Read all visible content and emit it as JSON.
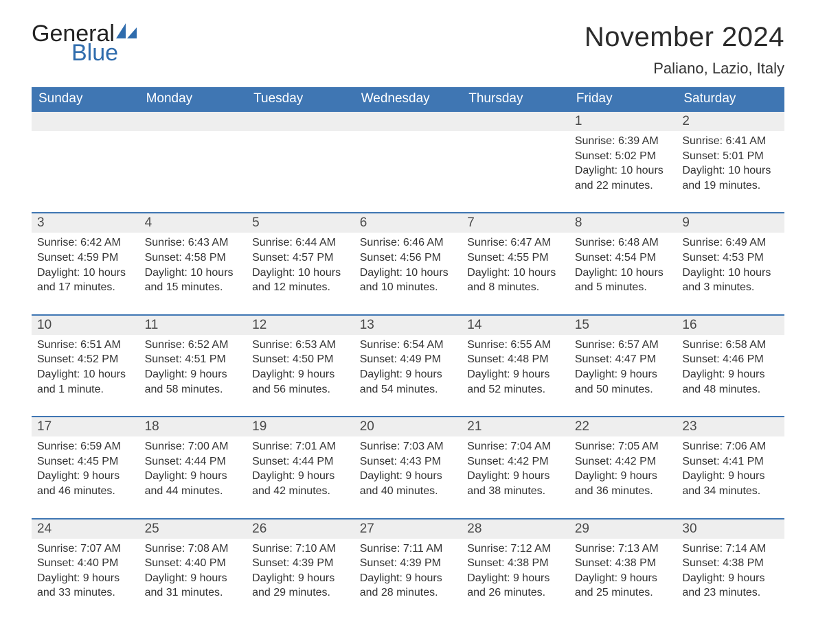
{
  "brand": {
    "text1": "General",
    "text2": "Blue",
    "color_text1": "#222222",
    "color_text2": "#2f6cad",
    "sail_color": "#2f6cad"
  },
  "title": "November 2024",
  "location": "Paliano, Lazio, Italy",
  "colors": {
    "header_bg": "#3f76b3",
    "header_fg": "#ffffff",
    "daynum_bg": "#eeeeee",
    "daynum_border": "#3f76b3",
    "body_text": "#333333",
    "background": "#ffffff"
  },
  "day_headers": [
    "Sunday",
    "Monday",
    "Tuesday",
    "Wednesday",
    "Thursday",
    "Friday",
    "Saturday"
  ],
  "weeks": [
    [
      null,
      null,
      null,
      null,
      null,
      {
        "n": "1",
        "sunrise": "6:39 AM",
        "sunset": "5:02 PM",
        "daylight": "10 hours and 22 minutes."
      },
      {
        "n": "2",
        "sunrise": "6:41 AM",
        "sunset": "5:01 PM",
        "daylight": "10 hours and 19 minutes."
      }
    ],
    [
      {
        "n": "3",
        "sunrise": "6:42 AM",
        "sunset": "4:59 PM",
        "daylight": "10 hours and 17 minutes."
      },
      {
        "n": "4",
        "sunrise": "6:43 AM",
        "sunset": "4:58 PM",
        "daylight": "10 hours and 15 minutes."
      },
      {
        "n": "5",
        "sunrise": "6:44 AM",
        "sunset": "4:57 PM",
        "daylight": "10 hours and 12 minutes."
      },
      {
        "n": "6",
        "sunrise": "6:46 AM",
        "sunset": "4:56 PM",
        "daylight": "10 hours and 10 minutes."
      },
      {
        "n": "7",
        "sunrise": "6:47 AM",
        "sunset": "4:55 PM",
        "daylight": "10 hours and 8 minutes."
      },
      {
        "n": "8",
        "sunrise": "6:48 AM",
        "sunset": "4:54 PM",
        "daylight": "10 hours and 5 minutes."
      },
      {
        "n": "9",
        "sunrise": "6:49 AM",
        "sunset": "4:53 PM",
        "daylight": "10 hours and 3 minutes."
      }
    ],
    [
      {
        "n": "10",
        "sunrise": "6:51 AM",
        "sunset": "4:52 PM",
        "daylight": "10 hours and 1 minute."
      },
      {
        "n": "11",
        "sunrise": "6:52 AM",
        "sunset": "4:51 PM",
        "daylight": "9 hours and 58 minutes."
      },
      {
        "n": "12",
        "sunrise": "6:53 AM",
        "sunset": "4:50 PM",
        "daylight": "9 hours and 56 minutes."
      },
      {
        "n": "13",
        "sunrise": "6:54 AM",
        "sunset": "4:49 PM",
        "daylight": "9 hours and 54 minutes."
      },
      {
        "n": "14",
        "sunrise": "6:55 AM",
        "sunset": "4:48 PM",
        "daylight": "9 hours and 52 minutes."
      },
      {
        "n": "15",
        "sunrise": "6:57 AM",
        "sunset": "4:47 PM",
        "daylight": "9 hours and 50 minutes."
      },
      {
        "n": "16",
        "sunrise": "6:58 AM",
        "sunset": "4:46 PM",
        "daylight": "9 hours and 48 minutes."
      }
    ],
    [
      {
        "n": "17",
        "sunrise": "6:59 AM",
        "sunset": "4:45 PM",
        "daylight": "9 hours and 46 minutes."
      },
      {
        "n": "18",
        "sunrise": "7:00 AM",
        "sunset": "4:44 PM",
        "daylight": "9 hours and 44 minutes."
      },
      {
        "n": "19",
        "sunrise": "7:01 AM",
        "sunset": "4:44 PM",
        "daylight": "9 hours and 42 minutes."
      },
      {
        "n": "20",
        "sunrise": "7:03 AM",
        "sunset": "4:43 PM",
        "daylight": "9 hours and 40 minutes."
      },
      {
        "n": "21",
        "sunrise": "7:04 AM",
        "sunset": "4:42 PM",
        "daylight": "9 hours and 38 minutes."
      },
      {
        "n": "22",
        "sunrise": "7:05 AM",
        "sunset": "4:42 PM",
        "daylight": "9 hours and 36 minutes."
      },
      {
        "n": "23",
        "sunrise": "7:06 AM",
        "sunset": "4:41 PM",
        "daylight": "9 hours and 34 minutes."
      }
    ],
    [
      {
        "n": "24",
        "sunrise": "7:07 AM",
        "sunset": "4:40 PM",
        "daylight": "9 hours and 33 minutes."
      },
      {
        "n": "25",
        "sunrise": "7:08 AM",
        "sunset": "4:40 PM",
        "daylight": "9 hours and 31 minutes."
      },
      {
        "n": "26",
        "sunrise": "7:10 AM",
        "sunset": "4:39 PM",
        "daylight": "9 hours and 29 minutes."
      },
      {
        "n": "27",
        "sunrise": "7:11 AM",
        "sunset": "4:39 PM",
        "daylight": "9 hours and 28 minutes."
      },
      {
        "n": "28",
        "sunrise": "7:12 AM",
        "sunset": "4:38 PM",
        "daylight": "9 hours and 26 minutes."
      },
      {
        "n": "29",
        "sunrise": "7:13 AM",
        "sunset": "4:38 PM",
        "daylight": "9 hours and 25 minutes."
      },
      {
        "n": "30",
        "sunrise": "7:14 AM",
        "sunset": "4:38 PM",
        "daylight": "9 hours and 23 minutes."
      }
    ]
  ],
  "labels": {
    "sunrise": "Sunrise:",
    "sunset": "Sunset:",
    "daylight": "Daylight:"
  }
}
